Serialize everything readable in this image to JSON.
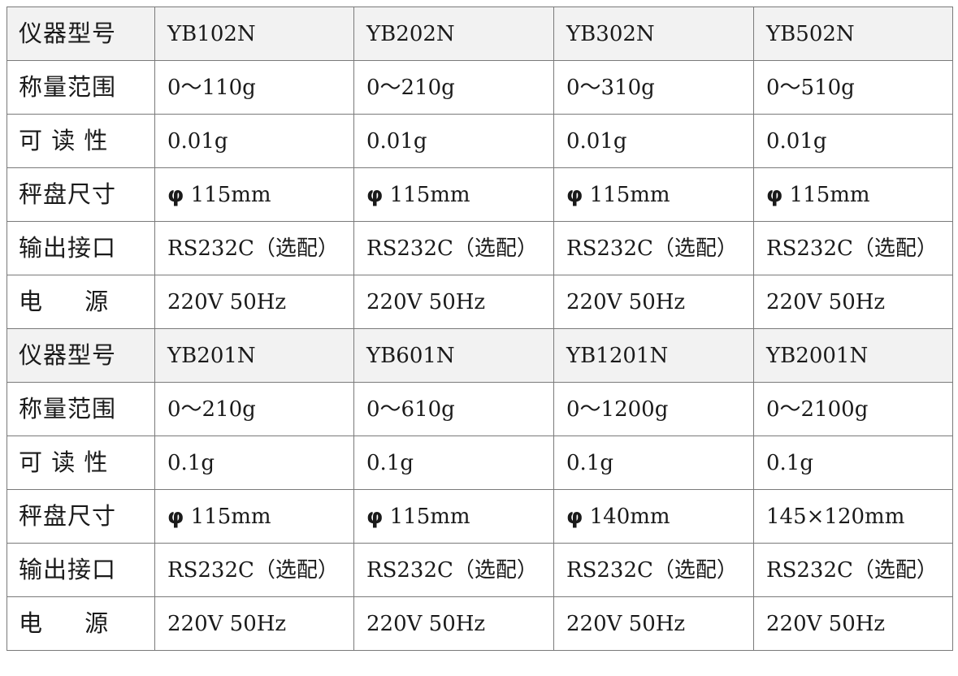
{
  "table": {
    "rows": [
      {
        "header": true,
        "label": "仪器型号",
        "cells": [
          "YB102N",
          "YB202N",
          "YB302N",
          "YB502N"
        ]
      },
      {
        "header": false,
        "label": "称量范围",
        "cells": [
          "0～110g",
          "0～210g",
          "0～310g",
          "0～510g"
        ]
      },
      {
        "header": false,
        "label": "可 读 性",
        "cells": [
          "0.01g",
          "0.01g",
          "0.01g",
          "0.01g"
        ]
      },
      {
        "header": false,
        "label": "秤盘尺寸",
        "cells": [
          "φ 115mm",
          "φ 115mm",
          "φ 115mm",
          "φ 115mm"
        ]
      },
      {
        "header": false,
        "label": "输出接口",
        "cells": [
          "RS232C（选配）",
          "RS232C（选配）",
          "RS232C（选配）",
          "RS232C（选配）"
        ]
      },
      {
        "header": false,
        "label": "电     源",
        "cells": [
          "220V 50Hz",
          "220V 50Hz",
          "220V 50Hz",
          "220V 50Hz"
        ]
      },
      {
        "header": true,
        "label": "仪器型号",
        "cells": [
          "YB201N",
          "YB601N",
          "YB1201N",
          "YB2001N"
        ]
      },
      {
        "header": false,
        "label": "称量范围",
        "cells": [
          "0～210g",
          "0～610g",
          "0～1200g",
          "0～2100g"
        ]
      },
      {
        "header": false,
        "label": "可 读 性",
        "cells": [
          "0.1g",
          "0.1g",
          "0.1g",
          "0.1g"
        ]
      },
      {
        "header": false,
        "label": "秤盘尺寸",
        "cells": [
          "φ 115mm",
          "φ 115mm",
          "φ 140mm",
          "145×120mm"
        ]
      },
      {
        "header": false,
        "label": "输出接口",
        "cells": [
          "RS232C（选配）",
          "RS232C（选配）",
          "RS232C（选配）",
          "RS232C（选配）"
        ]
      },
      {
        "header": false,
        "label": "电     源",
        "cells": [
          "220V 50Hz",
          "220V 50Hz",
          "220V 50Hz",
          "220V 50Hz"
        ]
      }
    ]
  }
}
